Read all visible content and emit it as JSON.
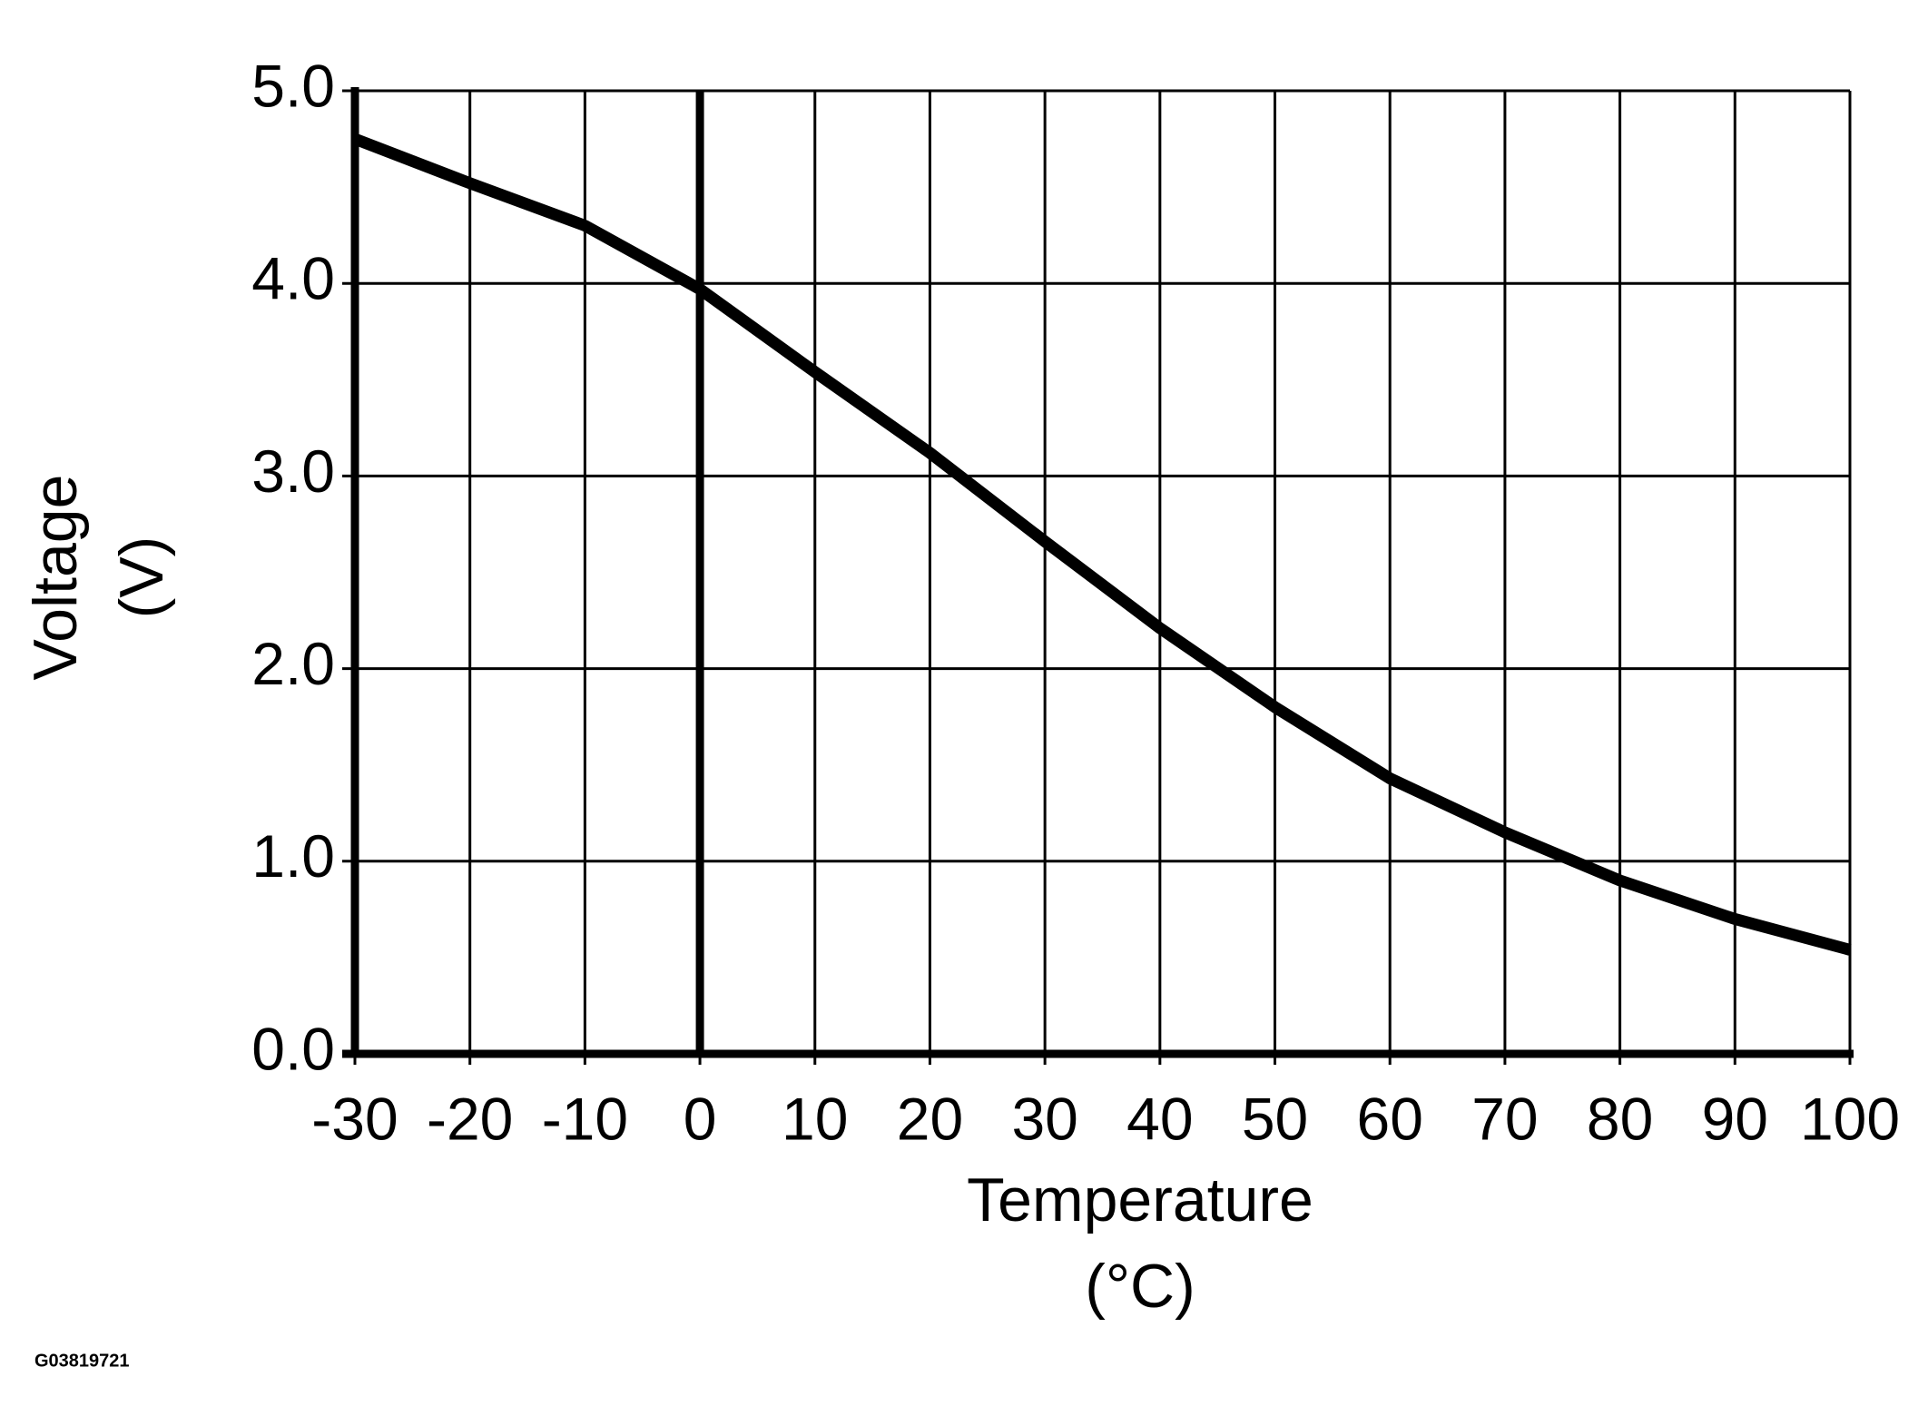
{
  "chart_data": {
    "type": "line",
    "x_label": [
      "Temperature",
      "(°C)"
    ],
    "y_label": [
      "Voltage",
      "(V)"
    ],
    "figure_id": "G03819721",
    "x": [
      -30,
      -20,
      -10,
      0,
      10,
      20,
      30,
      40,
      50,
      60,
      70,
      80,
      90,
      100
    ],
    "series": [
      {
        "color": "#000000",
        "values": [
          4.75,
          4.52,
          4.3,
          3.97,
          3.54,
          3.12,
          2.66,
          2.21,
          1.8,
          1.43,
          1.15,
          0.9,
          0.7,
          0.54
        ]
      }
    ],
    "xlim": [
      -30,
      100
    ],
    "xticks": [
      -30,
      -20,
      -10,
      0,
      10,
      20,
      30,
      40,
      50,
      60,
      70,
      80,
      90,
      100
    ],
    "ylim": [
      0,
      5
    ],
    "yticks": [
      {
        "value": 0,
        "label": "0.0"
      },
      {
        "value": 1,
        "label": "1.0"
      },
      {
        "value": 2,
        "label": "2.0"
      },
      {
        "value": 3,
        "label": "3.0"
      },
      {
        "value": 4,
        "label": "4.0"
      },
      {
        "value": 5,
        "label": "5.0"
      }
    ],
    "grid": true
  }
}
